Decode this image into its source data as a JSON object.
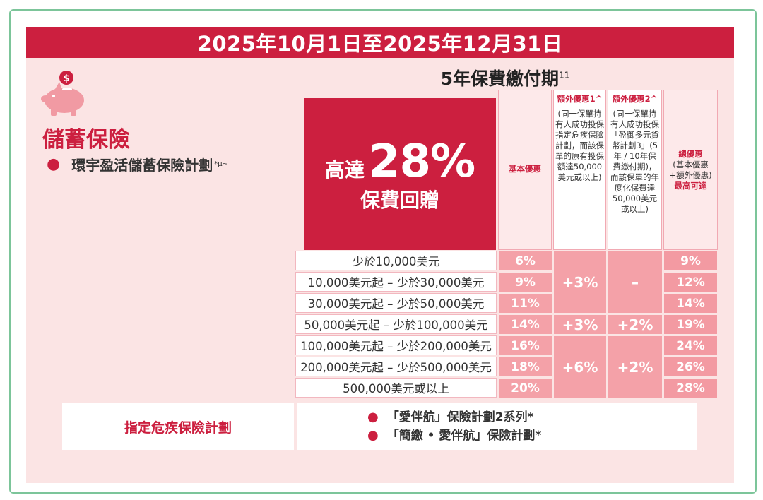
{
  "date_range": "2025年10月1日至2025年12月31日",
  "period": {
    "title": "5年保費繳付期",
    "sup": "11"
  },
  "category": {
    "title": "儲蓄保險",
    "plan": "環宇盈活儲蓄保險計劃",
    "plan_sup": "*μ~"
  },
  "promo": {
    "prefix": "高達",
    "percent": "28%",
    "line2": "保費回贈"
  },
  "columns": {
    "basic": "基本優惠",
    "extra1_title": "額外優惠1",
    "extra1_mark": "^",
    "extra1_body": "(同一保單持有人成功投保指定危疾保險計劃，而該保單的原有投保額達50,000美元或以上)",
    "extra2_title": "額外優惠2",
    "extra2_mark": "^",
    "extra2_body": "(同一保單持有人成功投保「盈御多元貨幣計劃3」(5年 / 10年保費繳付期)，而該保單的年度化保費達50,000美元或以上)",
    "total_title": "總優惠",
    "total_body": "(基本優惠+額外優惠)",
    "total_note": "最高可達"
  },
  "rows": [
    {
      "label": "少於10,000美元",
      "basic": "6%",
      "total": "9%"
    },
    {
      "label": "10,000美元起 – 少於30,000美元",
      "basic": "9%",
      "total": "12%"
    },
    {
      "label": "30,000美元起 – 少於50,000美元",
      "basic": "11%",
      "total": "14%"
    },
    {
      "label": "50,000美元起 – 少於100,000美元",
      "basic": "14%",
      "total": "19%"
    },
    {
      "label": "100,000美元起 – 少於200,000美元",
      "basic": "16%",
      "total": "24%"
    },
    {
      "label": "200,000美元起 – 少於500,000美元",
      "basic": "18%",
      "total": "26%"
    },
    {
      "label": "500,000美元或以上",
      "basic": "20%",
      "total": "28%"
    }
  ],
  "merged": {
    "extra1_a": "+3%",
    "extra1_b": "+3%",
    "extra1_c": "+6%",
    "extra2_a": "–",
    "extra2_b": "+2%",
    "extra2_c": "+2%"
  },
  "designated": {
    "label": "指定危疾保險計劃",
    "items": [
      "「愛伴航」保險計劃2系列*",
      "「簡繳 • 愛伴航」保險計劃*"
    ]
  },
  "colors": {
    "brand_red": "#cc1f3f",
    "panel_pink": "#fbe4e4",
    "cell_pink": "#f4a1a8"
  },
  "icons": {
    "piggy": "piggy-bank-icon"
  }
}
